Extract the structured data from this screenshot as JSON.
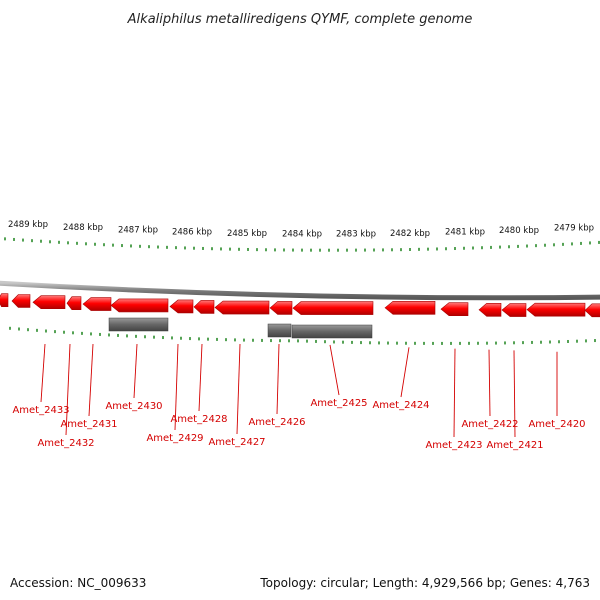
{
  "title": "Alkaliphilus metalliredigens QYMF, complete genome",
  "footer": {
    "accession": "Accession: NC_009633",
    "info": "Topology: circular; Length: 4,929,566 bp; Genes: 4,763"
  },
  "colors": {
    "gene_fill": "#ff0000",
    "gene_edge": "#aa0000",
    "rna_fill": "#666666",
    "backbone": "#8a8a8a",
    "tick": "#2a8a2a",
    "label": "#d40000"
  },
  "scale_labels": [
    "2489 kbp",
    "2488 kbp",
    "2487 kbp",
    "2486 kbp",
    "2485 kbp",
    "2484 kbp",
    "2483 kbp",
    "2482 kbp",
    "2481 kbp",
    "2480 kbp",
    "2479 kbp"
  ],
  "gene_labels": [
    "Amet_2433",
    "Amet_2432",
    "Amet_2431",
    "Amet_2430",
    "Amet_2429",
    "Amet_2428",
    "Amet_2427",
    "Amet_2426",
    "Amet_2425",
    "Amet_2424",
    "Amet_2423",
    "Amet_2422",
    "Amet_2421",
    "Amet_2420"
  ]
}
